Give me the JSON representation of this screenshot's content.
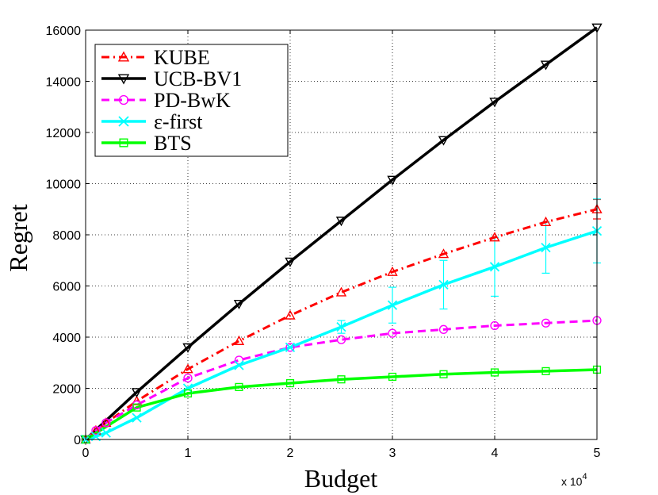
{
  "chart_data": {
    "type": "line",
    "title": "",
    "xlabel": "Budget",
    "ylabel": "Regret",
    "x_multiplier_base": "x 10",
    "x_multiplier_exp": "4",
    "xlim": [
      0,
      5
    ],
    "ylim": [
      0,
      16000
    ],
    "grid": true,
    "legend_position": "top-left",
    "x_ticks": [
      0,
      1,
      2,
      3,
      4,
      5
    ],
    "y_ticks": [
      0,
      2000,
      4000,
      6000,
      8000,
      10000,
      12000,
      14000,
      16000
    ],
    "series": [
      {
        "name": "KUBE",
        "color": "#ff0000",
        "marker": "triangle-up",
        "linestyle": "dashdot",
        "x": [
          0,
          0.1,
          0.2,
          0.5,
          1,
          1.5,
          2,
          2.5,
          3,
          3.5,
          4,
          4.5,
          5
        ],
        "y": [
          0,
          350,
          650,
          1500,
          2750,
          3850,
          4850,
          5750,
          6550,
          7250,
          7900,
          8500,
          9000
        ],
        "err": [
          0,
          0,
          0,
          0,
          0,
          0,
          0,
          0,
          0,
          0,
          0,
          0,
          380
        ]
      },
      {
        "name": "UCB-BV1",
        "color": "#000000",
        "marker": "triangle-down",
        "linestyle": "solid",
        "x": [
          0,
          0.5,
          1,
          1.5,
          2,
          2.5,
          3,
          3.5,
          4,
          4.5,
          5
        ],
        "y": [
          0,
          1850,
          3600,
          5300,
          6950,
          8550,
          10150,
          11700,
          13200,
          14650,
          16100
        ]
      },
      {
        "name": "PD-BwK",
        "color": "#ff00ff",
        "marker": "circle",
        "linestyle": "dashed",
        "x": [
          0,
          0.1,
          0.2,
          0.5,
          1,
          1.5,
          2,
          2.5,
          3,
          3.5,
          4,
          4.5,
          5
        ],
        "y": [
          0,
          350,
          650,
          1350,
          2400,
          3100,
          3600,
          3900,
          4150,
          4300,
          4450,
          4550,
          4650
        ]
      },
      {
        "name": "ε-first",
        "color": "#00ffff",
        "marker": "x",
        "linestyle": "solid",
        "x": [
          0,
          0.1,
          0.2,
          0.5,
          1,
          1.5,
          2,
          2.5,
          3,
          3.5,
          4,
          4.5,
          5
        ],
        "y": [
          0,
          120,
          260,
          850,
          2000,
          2900,
          3600,
          4400,
          5250,
          6050,
          6750,
          7500,
          8150
        ],
        "err": [
          0,
          0,
          0,
          0,
          0,
          0,
          0,
          250,
          700,
          950,
          1150,
          1000,
          1250
        ]
      },
      {
        "name": "BTS",
        "color": "#00ff00",
        "marker": "square",
        "linestyle": "solid",
        "x": [
          0,
          0.5,
          1,
          1.5,
          2,
          2.5,
          3,
          3.5,
          4,
          4.5,
          5
        ],
        "y": [
          0,
          1250,
          1800,
          2050,
          2200,
          2350,
          2450,
          2550,
          2620,
          2670,
          2730
        ]
      }
    ]
  }
}
